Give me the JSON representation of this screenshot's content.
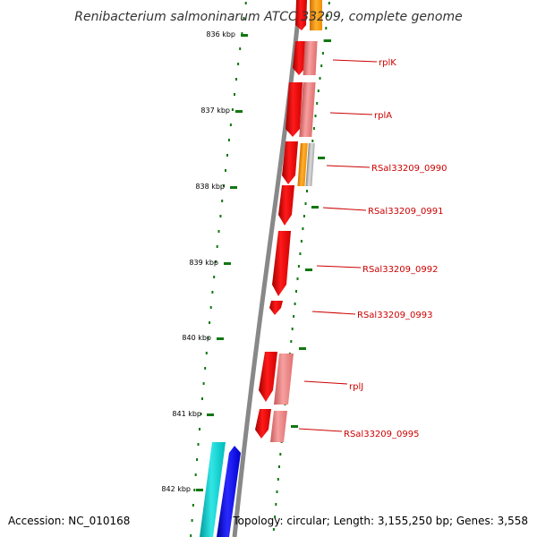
{
  "title": "Renibacterium salmoninarum ATCC 33209, complete genome",
  "accession": "Accession: NC_010168",
  "topology": "Topology: circular; Length: 3,155,250 bp; Genes: 3,558",
  "kbp_ticks": [
    {
      "label": "836 kbp",
      "kbp": 836
    },
    {
      "label": "837 kbp",
      "kbp": 837
    },
    {
      "label": "838 kbp",
      "kbp": 838
    },
    {
      "label": "839 kbp",
      "kbp": 839
    },
    {
      "label": "840 kbp",
      "kbp": 840
    },
    {
      "label": "841 kbp",
      "kbp": 841
    },
    {
      "label": "842 kbp",
      "kbp": 842
    }
  ],
  "gene_labels": [
    {
      "name": "rplK"
    },
    {
      "name": "rplA"
    },
    {
      "name": "RSal33209_0990"
    },
    {
      "name": "RSal33209_0991"
    },
    {
      "name": "RSal33209_0992"
    },
    {
      "name": "RSal33209_0993"
    },
    {
      "name": "rplJ"
    },
    {
      "name": "RSal33209_0995"
    }
  ],
  "colors": {
    "cds": "#ff0000",
    "cds_dark": "#b80000",
    "gene_pink": "#f08080",
    "gene_pink_dark": "#c05050",
    "orange": "#ff9900",
    "grey": "#aaaaaa",
    "cyan": "#00cccc",
    "blue": "#0000ee",
    "backbone": "#888888",
    "tick": "#117711",
    "label": "#cc0000"
  }
}
